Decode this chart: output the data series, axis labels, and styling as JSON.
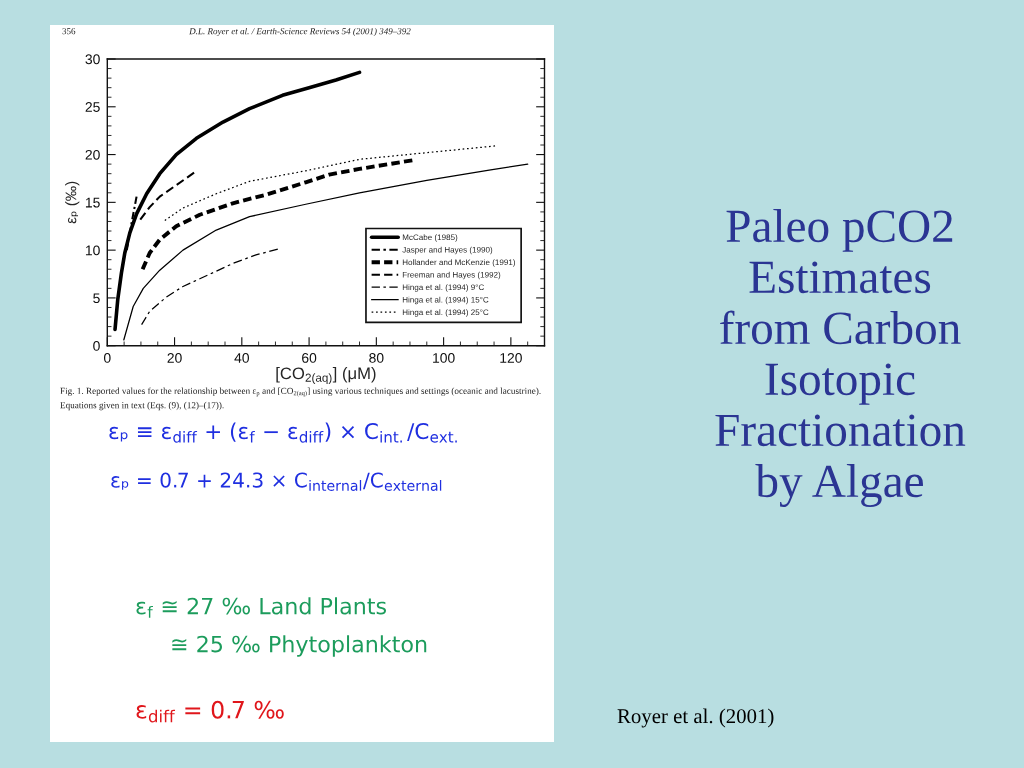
{
  "chart_data": {
    "type": "line",
    "title": "Paleo pCO2 Estimates from Carbon Isotopic Fractionation by Algae",
    "xlabel": "[CO$_{2(aq)}$] (μM)",
    "ylabel": "εₚ (‰)",
    "xlim": [
      0,
      130
    ],
    "ylim": [
      0,
      30
    ],
    "xticks": [
      0,
      {
        "value": 5,
        "label": null
      },
      {
        "value": 10,
        "label": null
      },
      {
        "value": 15,
        "label": null
      },
      20,
      {
        "value": 25,
        "label": null
      },
      {
        "value": 30,
        "label": null
      },
      {
        "value": 35,
        "label": null
      },
      40,
      {
        "value": 45,
        "label": null
      },
      {
        "value": 50,
        "label": null
      },
      {
        "value": 55,
        "label": null
      },
      60,
      {
        "value": 65,
        "label": null
      },
      {
        "value": 70,
        "label": null
      },
      {
        "value": 75,
        "label": null
      },
      80,
      {
        "value": 85,
        "label": null
      },
      {
        "value": 90,
        "label": null
      },
      {
        "value": 95,
        "label": null
      },
      100,
      {
        "value": 105,
        "label": null
      },
      {
        "value": 110,
        "label": null
      },
      {
        "value": 115,
        "label": null
      },
      120,
      {
        "value": 125,
        "label": null
      }
    ],
    "yticks": [
      0,
      {
        "value": 1,
        "label": null
      },
      {
        "value": 2,
        "label": null
      },
      {
        "value": 3,
        "label": null
      },
      {
        "value": 4,
        "label": null
      },
      5,
      {
        "value": 6,
        "label": null
      },
      {
        "value": 7,
        "label": null
      },
      {
        "value": 8,
        "label": null
      },
      {
        "value": 9,
        "label": null
      },
      10,
      {
        "value": 11,
        "label": null
      },
      {
        "value": 12,
        "label": null
      },
      {
        "value": 13,
        "label": null
      },
      {
        "value": 14,
        "label": null
      },
      15,
      {
        "value": 16,
        "label": null
      },
      {
        "value": 17,
        "label": null
      },
      {
        "value": 18,
        "label": null
      },
      {
        "value": 19,
        "label": null
      },
      20,
      {
        "value": 21,
        "label": null
      },
      {
        "value": 22,
        "label": null
      },
      {
        "value": 23,
        "label": null
      },
      {
        "value": 24,
        "label": null
      },
      25,
      {
        "value": 26,
        "label": null
      },
      {
        "value": 27,
        "label": null
      },
      {
        "value": 28,
        "label": null
      },
      {
        "value": 29,
        "label": null
      },
      30
    ],
    "legend": "bottom right",
    "series": [
      {
        "name": "McCabe (1985)",
        "color": "#000000",
        "line_style": "solid",
        "x": [
          2.3,
          3.1,
          4.2,
          5.2,
          6.7,
          8.7,
          11.7,
          15.6,
          20.5,
          26.5,
          34.4,
          42.3,
          52.1,
          60,
          68,
          75.0
        ],
        "values": [
          1.7,
          4.8,
          7.6,
          9.7,
          11.8,
          13.8,
          15.9,
          18.0,
          20.0,
          21.7,
          23.4,
          24.8,
          26.2,
          27.0,
          27.8,
          28.6
        ]
      },
      {
        "name": "Jasper and Hayes (1990)",
        "color": "#000000",
        "line_style": "dashdot",
        "x": [
          5.8,
          7.2,
          8.7
        ],
        "values": [
          10.0,
          12.8,
          15.6
        ]
      },
      {
        "name": "Hollander and McKenzie (1991)",
        "color": "#000000",
        "line_style": "dashed",
        "x": [
          10.5,
          12.6,
          15.6,
          20.5,
          27.5,
          37.3,
          47.2,
          59,
          66,
          75,
          90.7
        ],
        "values": [
          8.0,
          9.7,
          11.1,
          12.5,
          13.7,
          14.9,
          15.8,
          17.1,
          17.9,
          18.5,
          19.4
        ]
      },
      {
        "name": "Freeman and Hayes (1992)",
        "color": "#000000",
        "line_style": "dashed",
        "x": [
          9.8,
          12.6,
          15.6,
          20.5,
          25.8
        ],
        "values": [
          13.2,
          14.5,
          15.6,
          16.8,
          18.1
        ]
      },
      {
        "name": "Hinga et al. (1994) 9°C",
        "color": "#000000",
        "line_style": "dashdot",
        "x": [
          10.2,
          12.6,
          17.6,
          22.5,
          27.5,
          37.3,
          44.2,
          50.7
        ],
        "values": [
          2.2,
          3.6,
          5.1,
          6.2,
          7.0,
          8.6,
          9.5,
          10.1
        ]
      },
      {
        "name": "Hinga et al. (1994) 15°C",
        "color": "#000000",
        "line_style": "solid",
        "x": [
          4.9,
          7.7,
          10.7,
          15.6,
          22.5,
          32.4,
          42.3,
          59,
          75,
          95,
          114,
          125.0
        ],
        "values": [
          0.6,
          4.1,
          6.0,
          7.9,
          10.0,
          12.1,
          13.5,
          14.8,
          16.0,
          17.3,
          18.4,
          19.0
        ]
      },
      {
        "name": "Hinga et al. (1994) 25°C",
        "color": "#000000",
        "line_style": "dotted",
        "x": [
          17.1,
          22.5,
          32.4,
          42.3,
          59,
          75,
          95,
          115.3
        ],
        "values": [
          13.1,
          14.4,
          15.9,
          17.2,
          18.3,
          19.5,
          20.2,
          20.9
        ]
      }
    ],
    "annotations": [
      "356",
      "D.L. Royer et al. / Earth-Science Reviews 54 (2001) 349–392",
      "Fig. 1. Reported values for the relationship between ε$_{p}$ and [CO$_{2(aq)}$] using various techniques and settings (oceanic and lacustrine). Equations given in text (Eqs. (9), (12)–(17)).",
      "εₚ ≡ ε$_{diff}$ + (ε$_{f}$ − ε$_{diff}$) × C$_{int.}$/C$_{ext.}$",
      "εₚ = 0.7 + 24.3 × C$_{internal}$/C$_{external}$",
      "ε$_{f}$ ≅ 27 ‰ Land Plants",
      "≅ 25 ‰ Phytoplankton",
      "ε$_{diff}$ = 0.7 ‰",
      "Royer et al. (2001)"
    ]
  }
}
